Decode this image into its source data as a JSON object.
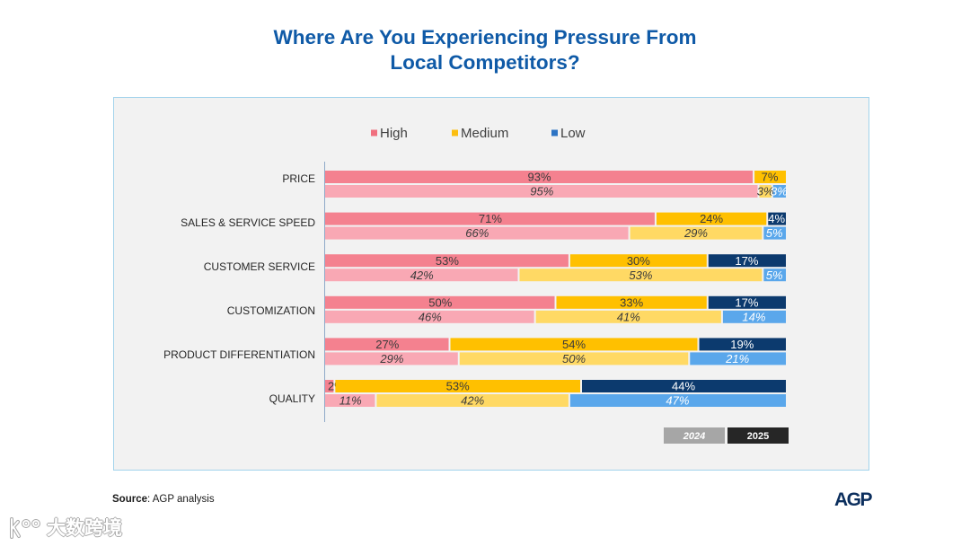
{
  "chart_data": {
    "type": "bar",
    "orientation": "horizontal",
    "stacked_percent": true,
    "title_lines": [
      "Where Are You Experiencing Pressure From",
      "Local Competitors?"
    ],
    "categories": [
      "PRICE",
      "SALES & SERVICE SPEED",
      "CUSTOMER SERVICE",
      "CUSTOMIZATION",
      "PRODUCT DIFFERENTIATION",
      "QUALITY"
    ],
    "value_suffix": "%",
    "xlim": [
      0,
      100
    ],
    "grid": false,
    "legend_placement": "top",
    "group_legend_placement": "bottom-right",
    "series": [
      {
        "name": "High",
        "legend_color": "#f0707f"
      },
      {
        "name": "Medium",
        "legend_color": "#fcbe10"
      },
      {
        "name": "Low",
        "legend_color": "#2d74c4"
      }
    ],
    "groups": [
      {
        "name": "2025",
        "italic": false,
        "legend_color": "#262626",
        "colors": [
          "#f4818f",
          "#ffc000",
          "#0c3a6e"
        ],
        "values": {
          "High": [
            93,
            71,
            53,
            50,
            27,
            2
          ],
          "Medium": [
            7,
            24,
            30,
            33,
            54,
            53
          ],
          "Low": [
            null,
            4,
            17,
            17,
            19,
            44
          ]
        }
      },
      {
        "name": "2024",
        "italic": true,
        "legend_color": "#a6a6a6",
        "colors": [
          "#f9a8b4",
          "#ffd964",
          "#5aa7eb"
        ],
        "values": {
          "High": [
            95,
            66,
            42,
            46,
            29,
            11
          ],
          "Medium": [
            3,
            29,
            53,
            41,
            50,
            42
          ],
          "Low": [
            3,
            5,
            5,
            14,
            21,
            47
          ]
        }
      }
    ]
  },
  "footer": {
    "source": {
      "label": "Source",
      "text": ": AGP analysis"
    },
    "logo_text": "AGP"
  },
  "watermark": {
    "text": "大数跨境"
  }
}
